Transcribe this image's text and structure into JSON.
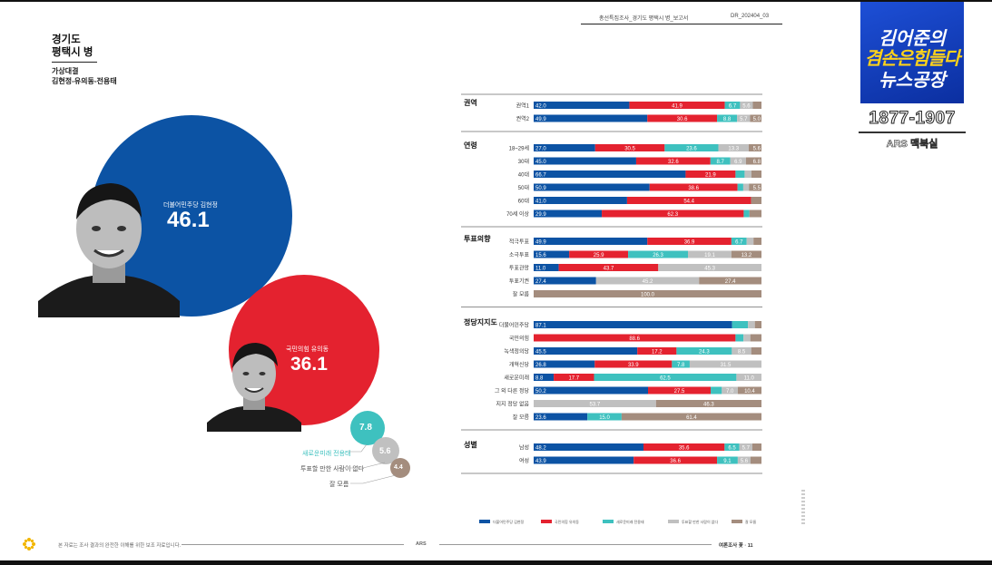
{
  "header": {
    "doc_title": "총선특집조사_경기도 평택시 병_보고서",
    "doc_code": "DR_202404_03"
  },
  "titles": {
    "region_line1": "경기도",
    "region_line2": "평택시 병",
    "sub_line1": "가상대결",
    "sub_line2": "김현정-유의동-전용태"
  },
  "candidates": [
    {
      "party_name": "더불어민주당 김현정",
      "value": "46.1",
      "color": "#0c53a4"
    },
    {
      "party_name": "국민의힘 유의동",
      "value": "36.1",
      "color": "#e4222f"
    },
    {
      "party_name": "새로운미래 전용태",
      "value": "7.8",
      "color": "#3ec1bf"
    },
    {
      "party_name": "투표할 만한 사람이 없다",
      "value": "5.6",
      "color": "#c0c0c0"
    },
    {
      "party_name": "잘 모름",
      "value": "4.4",
      "color": "#a48d7e"
    }
  ],
  "chart_data": {
    "type": "bar",
    "orientation": "horizontal",
    "stacked": true,
    "xlim": [
      0,
      100
    ],
    "series": [
      {
        "name": "더불어민주당 김현정",
        "color": "#0c53a4"
      },
      {
        "name": "국민의힘 유의동",
        "color": "#e4222f"
      },
      {
        "name": "새로운미래 전용태",
        "color": "#3ec1bf"
      },
      {
        "name": "투표할 만한 사람이 없다",
        "color": "#c0c0c0"
      },
      {
        "name": "잘 모름",
        "color": "#a48d7e"
      }
    ],
    "groups": [
      {
        "name": "권역",
        "rows": [
          {
            "label": "권역1",
            "values": [
              42.0,
              41.9,
              6.7,
              5.6,
              3.8
            ],
            "labels": [
              "42.0",
              "41.9",
              "6.7",
              "5.6",
              ""
            ]
          },
          {
            "label": "권역2",
            "values": [
              49.9,
              30.6,
              8.8,
              5.7,
              5.0
            ],
            "labels": [
              "49.9",
              "30.6",
              "8.8",
              "5.7",
              "5.0"
            ]
          }
        ]
      },
      {
        "name": "연령",
        "rows": [
          {
            "label": "18~29세",
            "values": [
              27.0,
              30.5,
              23.6,
              13.3,
              5.6
            ],
            "labels": [
              "27.0",
              "30.5",
              "23.6",
              "13.3",
              "5.6"
            ]
          },
          {
            "label": "30대",
            "values": [
              45.0,
              32.6,
              8.7,
              6.9,
              6.8
            ],
            "labels": [
              "45.0",
              "32.6",
              "8.7",
              "6.9",
              "6.8"
            ]
          },
          {
            "label": "40대",
            "values": [
              66.7,
              21.9,
              4.0,
              3.0,
              4.4
            ],
            "labels": [
              "66.7",
              "21.9",
              "",
              "",
              ""
            ]
          },
          {
            "label": "50대",
            "values": [
              50.9,
              38.6,
              2.5,
              2.5,
              5.5
            ],
            "labels": [
              "50.9",
              "38.6",
              "",
              "",
              "5.5"
            ]
          },
          {
            "label": "60대",
            "values": [
              41.0,
              54.4,
              0,
              0,
              4.6
            ],
            "labels": [
              "41.0",
              "54.4",
              "",
              "",
              ""
            ]
          },
          {
            "label": "70세 이상",
            "values": [
              29.9,
              62.3,
              2.5,
              0,
              5.3
            ],
            "labels": [
              "29.9",
              "62.3",
              "",
              "",
              ""
            ]
          }
        ]
      },
      {
        "name": "투표의향",
        "rows": [
          {
            "label": "적극투표",
            "values": [
              49.9,
              36.9,
              6.7,
              3.0,
              3.5
            ],
            "labels": [
              "49.9",
              "36.9",
              "6.7",
              "",
              ""
            ]
          },
          {
            "label": "소극투표",
            "values": [
              15.6,
              25.9,
              26.3,
              19.1,
              13.2
            ],
            "labels": [
              "15.6",
              "25.9",
              "26.3",
              "19.1",
              "13.2"
            ]
          },
          {
            "label": "투표관망",
            "values": [
              11.0,
              43.7,
              0,
              45.3,
              0
            ],
            "labels": [
              "11.0",
              "43.7",
              "",
              "45.3",
              ""
            ]
          },
          {
            "label": "투표기권",
            "values": [
              27.4,
              0,
              0,
              45.2,
              27.4
            ],
            "labels": [
              "27.4",
              "",
              "",
              "45.2",
              "27.4"
            ]
          },
          {
            "label": "잘 모름",
            "values": [
              0,
              0,
              0,
              0,
              100.0
            ],
            "labels": [
              "",
              "",
              "",
              "",
              "100.0"
            ]
          }
        ]
      },
      {
        "name": "정당지지도",
        "rows": [
          {
            "label": "더불어민주당",
            "values": [
              87.1,
              0,
              7.0,
              3.0,
              2.9
            ],
            "labels": [
              "87.1",
              "",
              "",
              "",
              ""
            ]
          },
          {
            "label": "국민의힘",
            "values": [
              0,
              88.6,
              3.5,
              3.0,
              4.9
            ],
            "labels": [
              "",
              "88.6",
              "",
              "",
              ""
            ]
          },
          {
            "label": "녹색정의당",
            "values": [
              45.5,
              17.2,
              24.3,
              8.5,
              4.5
            ],
            "labels": [
              "45.5",
              "17.2",
              "24.3",
              "8.5",
              ""
            ]
          },
          {
            "label": "개혁신당",
            "values": [
              26.8,
              33.9,
              7.8,
              31.5,
              0
            ],
            "labels": [
              "26.8",
              "33.9",
              "7.8",
              "31.5",
              ""
            ]
          },
          {
            "label": "새로운미래",
            "values": [
              8.8,
              17.7,
              62.5,
              11.0,
              0
            ],
            "labels": [
              "8.8",
              "17.7",
              "62.5",
              "11.0",
              ""
            ]
          },
          {
            "label": "그 외 다른 정당",
            "values": [
              50.2,
              27.5,
              4.9,
              7.0,
              10.4
            ],
            "labels": [
              "50.2",
              "27.5",
              "",
              "7.0",
              "10.4"
            ]
          },
          {
            "label": "지지 정당 없음",
            "values": [
              0,
              0,
              0,
              53.7,
              46.3
            ],
            "labels": [
              "",
              "",
              "",
              "53.7",
              "46.3"
            ]
          },
          {
            "label": "잘 모름",
            "values": [
              23.6,
              0,
              15.0,
              0,
              61.4
            ],
            "labels": [
              "23.6",
              "",
              "15.0",
              "",
              "61.4"
            ]
          }
        ]
      },
      {
        "name": "성별",
        "rows": [
          {
            "label": "남성",
            "values": [
              48.2,
              35.6,
              6.5,
              5.7,
              4.0
            ],
            "labels": [
              "48.2",
              "35.6",
              "6.5",
              "5.7",
              ""
            ]
          },
          {
            "label": "여성",
            "values": [
              43.9,
              36.6,
              9.1,
              5.6,
              4.8
            ],
            "labels": [
              "43.9",
              "36.6",
              "9.1",
              "5.6",
              ""
            ]
          }
        ]
      }
    ],
    "legend": {
      "position": "bottom"
    }
  },
  "brand": {
    "line1": "김어준의",
    "line2": "겸손은힘들다",
    "line3": "뉴스공장",
    "phone": "1877-1907",
    "ars": "ARS 맥북실"
  },
  "footer": {
    "left_note": "본 자료는 조사 결과의 완전한 이해를 위한 보조 자료입니다.",
    "center": "ARS",
    "right": "여론조사 꽃 · 11"
  }
}
